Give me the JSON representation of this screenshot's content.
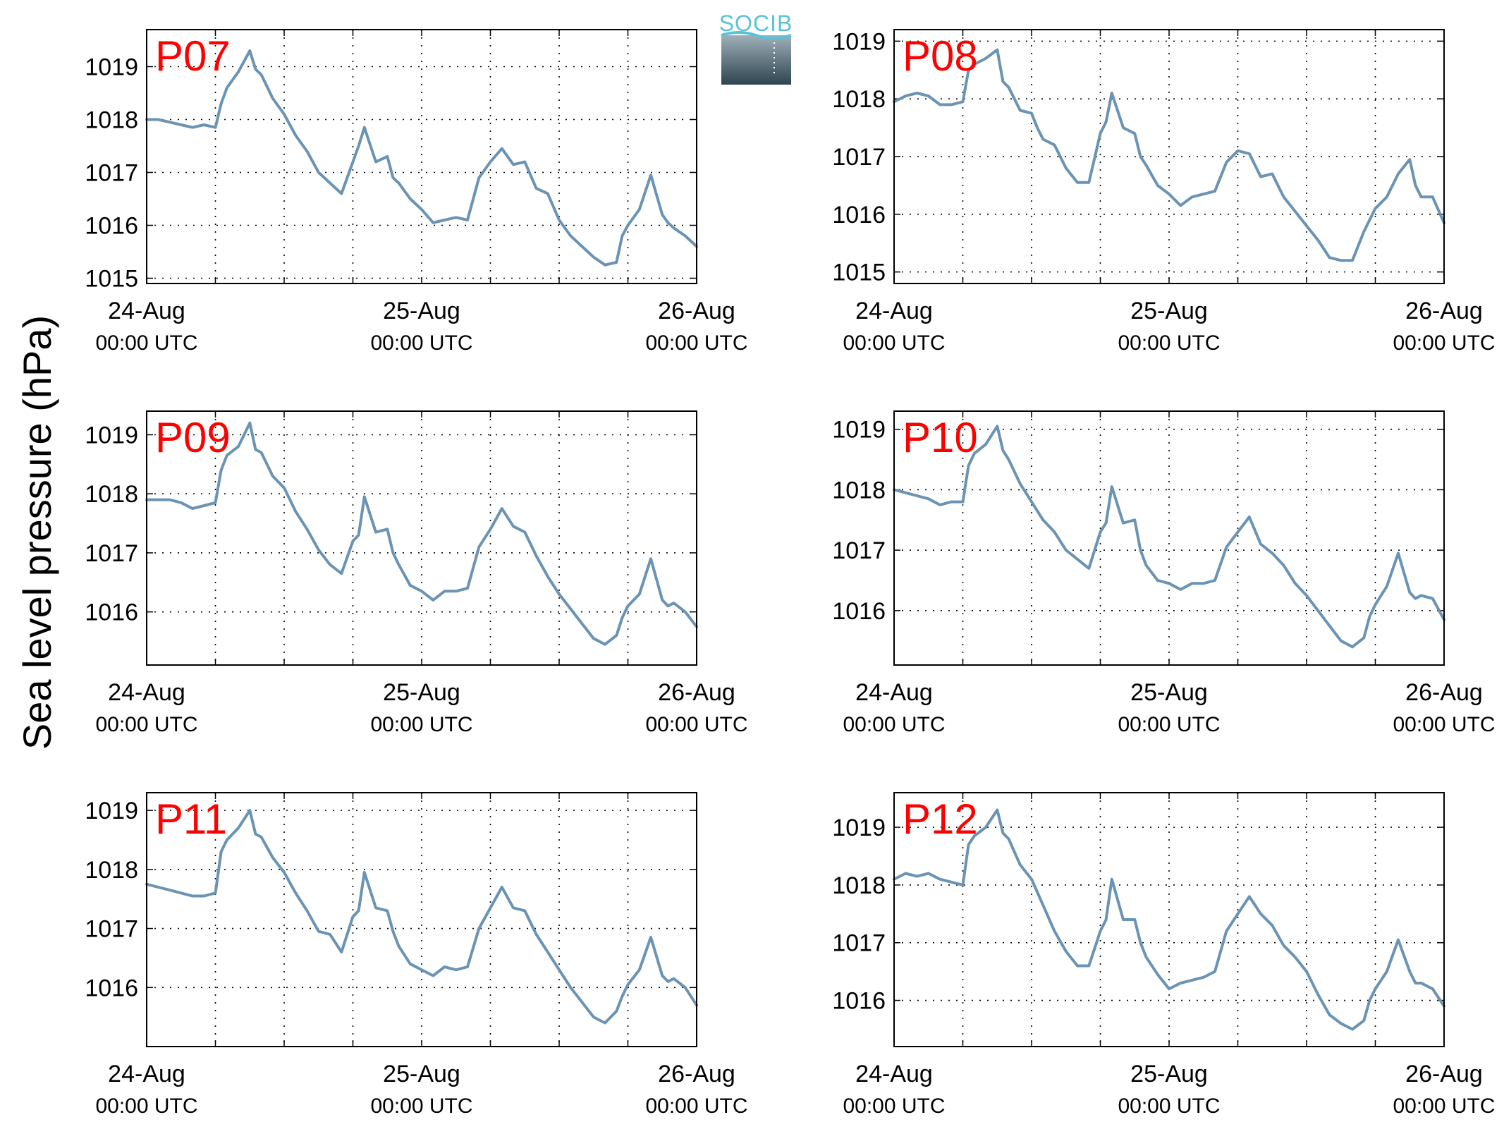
{
  "figure": {
    "ylabel": "Sea level pressure (hPa)",
    "logo_text": "SOCIB",
    "colors": {
      "line": "#6a93b4",
      "panel_label": "#ff0000",
      "logo_top": "#5bc3d6",
      "logo_bottom": "#2e4450"
    }
  },
  "chart_data": [
    {
      "type": "line",
      "title": "P07",
      "xlabel": "",
      "ylabel": "Sea level pressure (hPa)",
      "xlim": [
        0,
        48
      ],
      "ylim": [
        1014.9,
        1019.7
      ],
      "x_ticks": [
        0,
        24,
        48
      ],
      "x_tick_labels": [
        "24-Aug",
        "25-Aug",
        "26-Aug"
      ],
      "x_tick_sublabels": [
        "00:00 UTC",
        "00:00 UTC",
        "00:00 UTC"
      ],
      "y_ticks": [
        1015,
        1016,
        1017,
        1018,
        1019
      ],
      "y_tick_labels": [
        "1015",
        "1016",
        "1017",
        "1018",
        "1019"
      ],
      "grid": true,
      "series": [
        {
          "x": [
            0,
            1,
            2,
            3,
            4,
            5,
            6,
            6.5,
            7,
            8,
            9,
            9.5,
            10,
            11,
            12,
            13,
            14,
            15,
            16,
            17,
            18,
            18.5,
            19,
            20,
            21,
            21.5,
            22,
            23,
            24,
            25,
            26,
            27,
            28,
            29,
            30,
            31,
            32,
            33,
            34,
            35,
            36,
            37,
            38,
            39,
            40,
            41,
            41.5,
            42,
            43,
            44,
            45,
            45.5,
            46,
            47,
            48
          ],
          "y": [
            1018.0,
            1018.0,
            1017.95,
            1017.9,
            1017.85,
            1017.9,
            1017.85,
            1018.3,
            1018.6,
            1018.9,
            1019.3,
            1018.95,
            1018.85,
            1018.4,
            1018.1,
            1017.7,
            1017.4,
            1017.0,
            1016.8,
            1016.6,
            1017.2,
            1017.5,
            1017.85,
            1017.2,
            1017.3,
            1016.9,
            1016.8,
            1016.5,
            1016.3,
            1016.05,
            1016.1,
            1016.15,
            1016.1,
            1016.9,
            1017.2,
            1017.45,
            1017.15,
            1017.2,
            1016.7,
            1016.6,
            1016.1,
            1015.8,
            1015.6,
            1015.4,
            1015.25,
            1015.3,
            1015.8,
            1016.0,
            1016.3,
            1016.95,
            1016.2,
            1016.05,
            1015.95,
            1015.8,
            1015.6
          ]
        }
      ]
    },
    {
      "type": "line",
      "title": "P08",
      "xlabel": "",
      "ylabel": "Sea level pressure (hPa)",
      "xlim": [
        0,
        48
      ],
      "ylim": [
        1014.8,
        1019.2
      ],
      "x_ticks": [
        0,
        24,
        48
      ],
      "x_tick_labels": [
        "24-Aug",
        "25-Aug",
        "26-Aug"
      ],
      "x_tick_sublabels": [
        "00:00 UTC",
        "00:00 UTC",
        "00:00 UTC"
      ],
      "y_ticks": [
        1015,
        1016,
        1017,
        1018,
        1019
      ],
      "y_tick_labels": [
        "1015",
        "1016",
        "1017",
        "1018",
        "1019"
      ],
      "grid": true,
      "series": [
        {
          "x": [
            0,
            1,
            2,
            3,
            4,
            5,
            6,
            6.5,
            7,
            8,
            9,
            9.5,
            10,
            11,
            12,
            12.5,
            13,
            14,
            15,
            16,
            17,
            18,
            18.5,
            19,
            20,
            21,
            21.5,
            22,
            23,
            24,
            25,
            26,
            27,
            28,
            29,
            30,
            31,
            32,
            33,
            34,
            35,
            36,
            37,
            38,
            39,
            40,
            41,
            42,
            43,
            44,
            45,
            45.5,
            46,
            47,
            48
          ],
          "y": [
            1017.95,
            1018.05,
            1018.1,
            1018.05,
            1017.9,
            1017.9,
            1017.95,
            1018.5,
            1018.6,
            1018.7,
            1018.85,
            1018.3,
            1018.2,
            1017.8,
            1017.75,
            1017.5,
            1017.3,
            1017.2,
            1016.8,
            1016.55,
            1016.55,
            1017.4,
            1017.6,
            1018.1,
            1017.5,
            1017.4,
            1017.0,
            1016.85,
            1016.5,
            1016.35,
            1016.15,
            1016.3,
            1016.35,
            1016.4,
            1016.9,
            1017.1,
            1017.05,
            1016.65,
            1016.7,
            1016.3,
            1016.05,
            1015.8,
            1015.55,
            1015.25,
            1015.2,
            1015.2,
            1015.7,
            1016.1,
            1016.3,
            1016.7,
            1016.95,
            1016.5,
            1016.3,
            1016.3,
            1015.85
          ]
        }
      ]
    },
    {
      "type": "line",
      "title": "P09",
      "xlabel": "",
      "ylabel": "Sea level pressure (hPa)",
      "xlim": [
        0,
        48
      ],
      "ylim": [
        1015.1,
        1019.4
      ],
      "x_ticks": [
        0,
        24,
        48
      ],
      "x_tick_labels": [
        "24-Aug",
        "25-Aug",
        "26-Aug"
      ],
      "x_tick_sublabels": [
        "00:00 UTC",
        "00:00 UTC",
        "00:00 UTC"
      ],
      "y_ticks": [
        1016,
        1017,
        1018,
        1019
      ],
      "y_tick_labels": [
        "1016",
        "1017",
        "1018",
        "1019"
      ],
      "grid": true,
      "series": [
        {
          "x": [
            0,
            1,
            2,
            3,
            4,
            5,
            6,
            6.5,
            7,
            8,
            9,
            9.5,
            10,
            11,
            12,
            13,
            14,
            15,
            16,
            17,
            18,
            18.5,
            19,
            20,
            21,
            21.5,
            22,
            23,
            24,
            25,
            26,
            27,
            28,
            29,
            30,
            31,
            32,
            33,
            34,
            35,
            36,
            37,
            38,
            39,
            40,
            41,
            41.5,
            42,
            43,
            44,
            45,
            45.5,
            46,
            47,
            48
          ],
          "y": [
            1017.9,
            1017.9,
            1017.9,
            1017.85,
            1017.75,
            1017.8,
            1017.85,
            1018.4,
            1018.65,
            1018.8,
            1019.2,
            1018.75,
            1018.7,
            1018.3,
            1018.1,
            1017.7,
            1017.4,
            1017.05,
            1016.8,
            1016.65,
            1017.2,
            1017.3,
            1017.95,
            1017.35,
            1017.4,
            1017.0,
            1016.8,
            1016.45,
            1016.35,
            1016.2,
            1016.35,
            1016.35,
            1016.4,
            1017.1,
            1017.4,
            1017.75,
            1017.45,
            1017.35,
            1016.95,
            1016.6,
            1016.3,
            1016.05,
            1015.8,
            1015.55,
            1015.45,
            1015.6,
            1015.9,
            1016.1,
            1016.3,
            1016.9,
            1016.2,
            1016.1,
            1016.15,
            1016.0,
            1015.75
          ]
        }
      ]
    },
    {
      "type": "line",
      "title": "P10",
      "xlabel": "",
      "ylabel": "Sea level pressure (hPa)",
      "xlim": [
        0,
        48
      ],
      "ylim": [
        1015.1,
        1019.3
      ],
      "x_ticks": [
        0,
        24,
        48
      ],
      "x_tick_labels": [
        "24-Aug",
        "25-Aug",
        "26-Aug"
      ],
      "x_tick_sublabels": [
        "00:00 UTC",
        "00:00 UTC",
        "00:00 UTC"
      ],
      "y_ticks": [
        1016,
        1017,
        1018,
        1019
      ],
      "y_tick_labels": [
        "1016",
        "1017",
        "1018",
        "1019"
      ],
      "grid": true,
      "series": [
        {
          "x": [
            0,
            1,
            2,
            3,
            4,
            5,
            6,
            6.5,
            7,
            8,
            9,
            9.5,
            10,
            11,
            12,
            13,
            14,
            15,
            16,
            17,
            18,
            18.5,
            19,
            20,
            21,
            21.5,
            22,
            23,
            24,
            25,
            26,
            27,
            28,
            29,
            30,
            31,
            32,
            33,
            34,
            35,
            36,
            37,
            38,
            39,
            40,
            41,
            41.5,
            42,
            43,
            44,
            45,
            45.5,
            46,
            47,
            48
          ],
          "y": [
            1018.0,
            1017.95,
            1017.9,
            1017.85,
            1017.75,
            1017.8,
            1017.8,
            1018.4,
            1018.6,
            1018.75,
            1019.05,
            1018.65,
            1018.5,
            1018.1,
            1017.8,
            1017.5,
            1017.3,
            1017.0,
            1016.85,
            1016.7,
            1017.3,
            1017.45,
            1018.05,
            1017.45,
            1017.5,
            1017.0,
            1016.75,
            1016.5,
            1016.45,
            1016.35,
            1016.45,
            1016.45,
            1016.5,
            1017.05,
            1017.3,
            1017.55,
            1017.1,
            1016.95,
            1016.75,
            1016.45,
            1016.25,
            1016.0,
            1015.75,
            1015.5,
            1015.4,
            1015.55,
            1015.9,
            1016.1,
            1016.4,
            1016.95,
            1016.3,
            1016.2,
            1016.25,
            1016.2,
            1015.85
          ]
        }
      ]
    },
    {
      "type": "line",
      "title": "P11",
      "xlabel": "",
      "ylabel": "Sea level pressure (hPa)",
      "xlim": [
        0,
        48
      ],
      "ylim": [
        1015.0,
        1019.3
      ],
      "x_ticks": [
        0,
        24,
        48
      ],
      "x_tick_labels": [
        "24-Aug",
        "25-Aug",
        "26-Aug"
      ],
      "x_tick_sublabels": [
        "00:00 UTC",
        "00:00 UTC",
        "00:00 UTC"
      ],
      "y_ticks": [
        1016,
        1017,
        1018,
        1019
      ],
      "y_tick_labels": [
        "1016",
        "1017",
        "1018",
        "1019"
      ],
      "grid": true,
      "series": [
        {
          "x": [
            0,
            1,
            2,
            3,
            4,
            5,
            6,
            6.5,
            7,
            8,
            9,
            9.5,
            10,
            11,
            12,
            13,
            14,
            15,
            16,
            17,
            18,
            18.5,
            19,
            20,
            21,
            21.5,
            22,
            23,
            24,
            25,
            26,
            27,
            28,
            29,
            30,
            31,
            32,
            33,
            34,
            35,
            36,
            37,
            38,
            39,
            40,
            41,
            41.5,
            42,
            43,
            44,
            45,
            45.5,
            46,
            47,
            48
          ],
          "y": [
            1017.75,
            1017.7,
            1017.65,
            1017.6,
            1017.55,
            1017.55,
            1017.6,
            1018.3,
            1018.5,
            1018.7,
            1019.0,
            1018.6,
            1018.55,
            1018.2,
            1017.95,
            1017.6,
            1017.3,
            1016.95,
            1016.9,
            1016.6,
            1017.2,
            1017.3,
            1017.95,
            1017.35,
            1017.3,
            1016.95,
            1016.7,
            1016.4,
            1016.3,
            1016.2,
            1016.35,
            1016.3,
            1016.35,
            1017.0,
            1017.35,
            1017.7,
            1017.35,
            1017.3,
            1016.9,
            1016.6,
            1016.3,
            1016.0,
            1015.75,
            1015.5,
            1015.4,
            1015.6,
            1015.85,
            1016.05,
            1016.3,
            1016.85,
            1016.2,
            1016.1,
            1016.15,
            1016.0,
            1015.7
          ]
        }
      ]
    },
    {
      "type": "line",
      "title": "P12",
      "xlabel": "",
      "ylabel": "Sea level pressure (hPa)",
      "xlim": [
        0,
        48
      ],
      "ylim": [
        1015.2,
        1019.6
      ],
      "x_ticks": [
        0,
        24,
        48
      ],
      "x_tick_labels": [
        "24-Aug",
        "25-Aug",
        "26-Aug"
      ],
      "x_tick_sublabels": [
        "00:00 UTC",
        "00:00 UTC",
        "00:00 UTC"
      ],
      "y_ticks": [
        1016,
        1017,
        1018,
        1019
      ],
      "y_tick_labels": [
        "1016",
        "1017",
        "1018",
        "1019"
      ],
      "grid": true,
      "series": [
        {
          "x": [
            0,
            1,
            2,
            3,
            4,
            5,
            6,
            6.5,
            7,
            8,
            9,
            9.5,
            10,
            11,
            12,
            13,
            14,
            15,
            16,
            17,
            18,
            18.5,
            19,
            20,
            21,
            21.5,
            22,
            23,
            24,
            25,
            26,
            27,
            28,
            29,
            30,
            31,
            32,
            33,
            34,
            35,
            36,
            37,
            38,
            39,
            40,
            41,
            41.5,
            42,
            43,
            44,
            45,
            45.5,
            46,
            47,
            48
          ],
          "y": [
            1018.1,
            1018.2,
            1018.15,
            1018.2,
            1018.1,
            1018.05,
            1018.0,
            1018.7,
            1018.85,
            1019.0,
            1019.3,
            1018.9,
            1018.8,
            1018.35,
            1018.1,
            1017.65,
            1017.2,
            1016.85,
            1016.6,
            1016.6,
            1017.2,
            1017.4,
            1018.1,
            1017.4,
            1017.4,
            1017.0,
            1016.75,
            1016.45,
            1016.2,
            1016.3,
            1016.35,
            1016.4,
            1016.5,
            1017.2,
            1017.5,
            1017.8,
            1017.5,
            1017.3,
            1016.95,
            1016.75,
            1016.5,
            1016.1,
            1015.75,
            1015.6,
            1015.5,
            1015.65,
            1016.0,
            1016.2,
            1016.5,
            1017.05,
            1016.5,
            1016.3,
            1016.3,
            1016.2,
            1015.9
          ]
        }
      ]
    }
  ]
}
